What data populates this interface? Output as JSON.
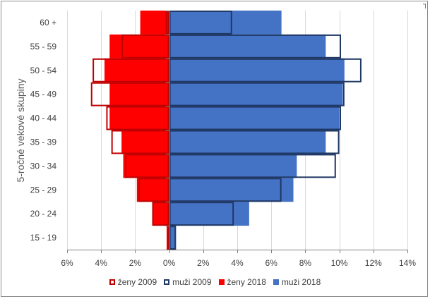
{
  "chart_data": {
    "type": "bar",
    "orientation": "horizontal",
    "stacked": false,
    "title": "",
    "ylabel": "5-ročné vekové skupiny",
    "xlabel": "",
    "categories": [
      "15 - 19",
      "20 - 24",
      "25 - 29",
      "30 - 34",
      "35 - 39",
      "40 - 44",
      "45 - 49",
      "50 - 54",
      "55 - 59",
      "60 +"
    ],
    "xlim": [
      -6,
      14
    ],
    "x_ticks": [
      -6,
      -4,
      -2,
      0,
      2,
      4,
      6,
      8,
      10,
      12,
      14
    ],
    "x_tick_labels": [
      "6%",
      "4%",
      "2%",
      "0%",
      "2%",
      "4%",
      "6%",
      "8%",
      "10%",
      "12%",
      "14%"
    ],
    "grid": "vertical",
    "legend_position": "bottom",
    "series": [
      {
        "name": "ženy 2009",
        "style": "outline",
        "color": "#c00000",
        "values": [
          -0.1,
          -1.0,
          -1.8,
          -2.6,
          -3.4,
          -3.7,
          -4.6,
          -4.5,
          -2.8,
          -0.2
        ]
      },
      {
        "name": "muži 2009",
        "style": "outline",
        "color": "#203864",
        "values": [
          0.4,
          3.8,
          6.6,
          9.8,
          10.0,
          10.1,
          10.3,
          11.3,
          10.1,
          3.7
        ]
      },
      {
        "name": "ženy 2018",
        "style": "filled",
        "color": "#ff0000",
        "values": [
          -0.15,
          -1.0,
          -1.9,
          -2.7,
          -2.8,
          -3.5,
          -3.5,
          -3.8,
          -3.5,
          -1.7
        ]
      },
      {
        "name": "muži 2018",
        "style": "filled",
        "color": "#4472c4",
        "values": [
          0.4,
          4.7,
          7.3,
          7.5,
          9.2,
          10.0,
          10.2,
          10.3,
          9.2,
          6.6
        ]
      }
    ]
  }
}
